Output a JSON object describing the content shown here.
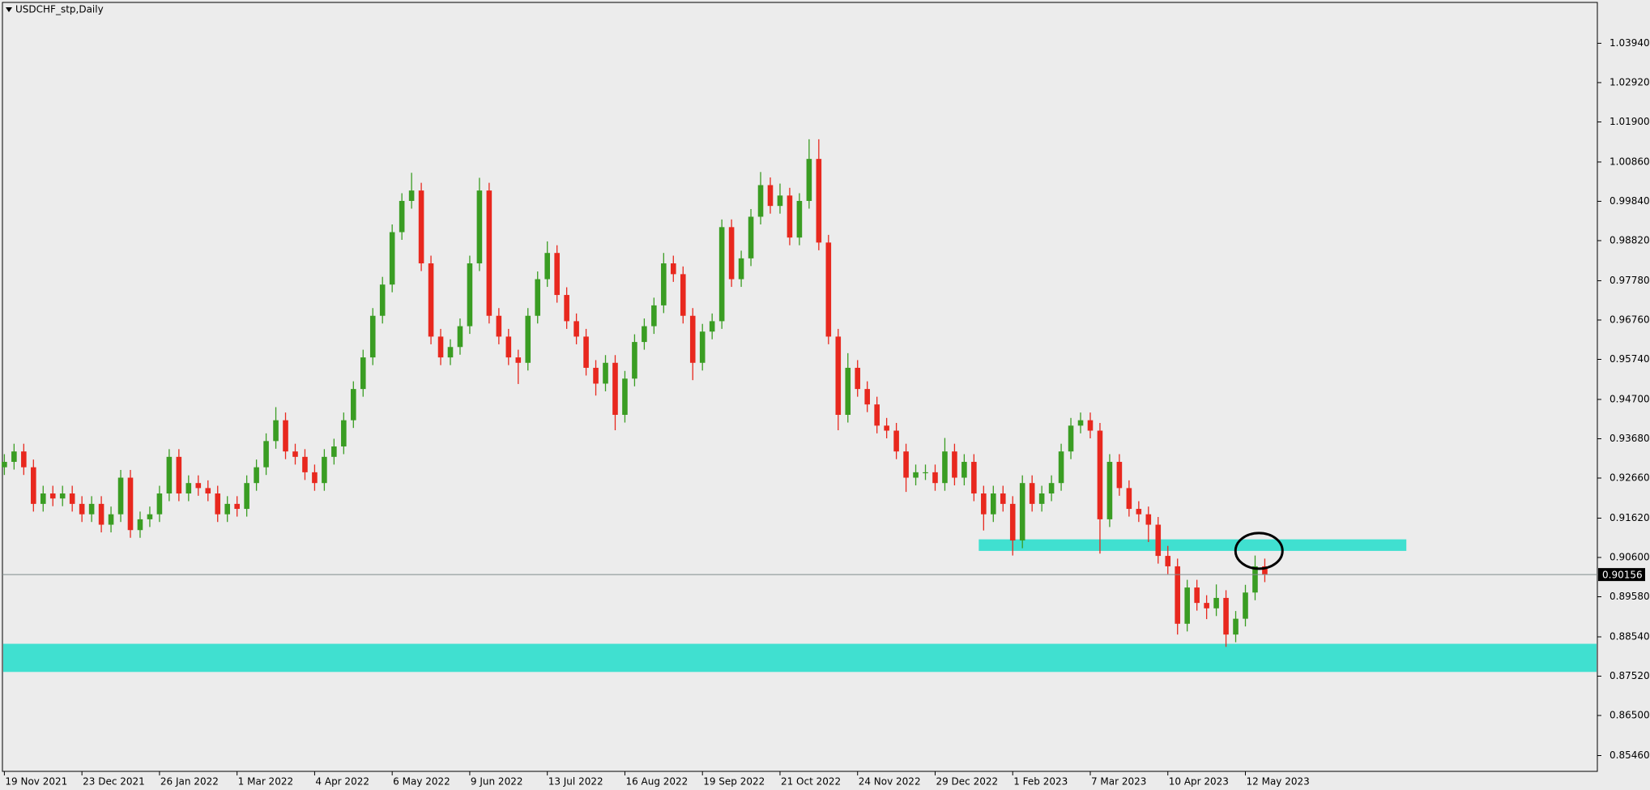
{
  "chart_data": {
    "type": "candlestick",
    "title": "USDCHF_stp,Daily",
    "up_color": "#3a9d23",
    "down_color": "#e8281e",
    "ylim": [
      0.8505,
      1.05
    ],
    "yticks": [
      {
        "value": 1.0394,
        "label": "1.03940"
      },
      {
        "value": 1.0292,
        "label": "1.02920"
      },
      {
        "value": 1.019,
        "label": "1.01900"
      },
      {
        "value": 1.0086,
        "label": "1.00860"
      },
      {
        "value": 0.9984,
        "label": "0.99840"
      },
      {
        "value": 0.9882,
        "label": "0.98820"
      },
      {
        "value": 0.9778,
        "label": "0.97780"
      },
      {
        "value": 0.9676,
        "label": "0.96760"
      },
      {
        "value": 0.9574,
        "label": "0.95740"
      },
      {
        "value": 0.947,
        "label": "0.94700"
      },
      {
        "value": 0.9368,
        "label": "0.93680"
      },
      {
        "value": 0.9266,
        "label": "0.92660"
      },
      {
        "value": 0.9162,
        "label": "0.91620"
      },
      {
        "value": 0.906,
        "label": "0.90600"
      },
      {
        "value": 0.8958,
        "label": "0.89580"
      },
      {
        "value": 0.8854,
        "label": "0.88540"
      },
      {
        "value": 0.8752,
        "label": "0.87520"
      },
      {
        "value": 0.865,
        "label": "0.86500"
      },
      {
        "value": 0.8546,
        "label": "0.85460"
      }
    ],
    "xlim": [
      -0.2,
      164.3
    ],
    "xticks": [
      {
        "value": 0,
        "label": "19 Nov 2021"
      },
      {
        "value": 8,
        "label": "23 Dec 2021"
      },
      {
        "value": 16,
        "label": "26 Jan 2022"
      },
      {
        "value": 24,
        "label": "1 Mar 2022"
      },
      {
        "value": 32,
        "label": "4 Apr 2022"
      },
      {
        "value": 40,
        "label": "6 May 2022"
      },
      {
        "value": 48,
        "label": "9 Jun 2022"
      },
      {
        "value": 56,
        "label": "13 Jul 2022"
      },
      {
        "value": 64,
        "label": "16 Aug 2022"
      },
      {
        "value": 72,
        "label": "19 Sep 2022"
      },
      {
        "value": 80,
        "label": "21 Oct 2022"
      },
      {
        "value": 88,
        "label": "24 Nov 2022"
      },
      {
        "value": 96,
        "label": "29 Dec 2022"
      },
      {
        "value": 104,
        "label": "1 Feb 2023"
      },
      {
        "value": 112,
        "label": "7 Mar 2023"
      },
      {
        "value": 120,
        "label": "10 Apr 2023"
      },
      {
        "value": 128,
        "label": "12 May 2023"
      }
    ],
    "open": [
      0.9294,
      0.9308,
      0.9335,
      0.9294,
      0.9199,
      0.9226,
      0.9213,
      0.9226,
      0.9199,
      0.9172,
      0.9199,
      0.9145,
      0.9172,
      0.9267,
      0.9131,
      0.9159,
      0.9172,
      0.9226,
      0.9321,
      0.9226,
      0.9253,
      0.924,
      0.9226,
      0.9172,
      0.9199,
      0.9186,
      0.9253,
      0.9294,
      0.9362,
      0.9416,
      0.9335,
      0.9321,
      0.9281,
      0.9253,
      0.9321,
      0.9348,
      0.9416,
      0.9497,
      0.9579,
      0.9687,
      0.9768,
      0.9904,
      0.9985,
      1.0012,
      0.9823,
      0.9633,
      0.9579,
      0.9606,
      0.966,
      0.9823,
      1.0012,
      0.9687,
      0.9633,
      0.9579,
      0.9565,
      0.9687,
      0.9782,
      0.985,
      0.9741,
      0.9673,
      0.9633,
      0.9552,
      0.9511,
      0.9565,
      0.943,
      0.9524,
      0.9619,
      0.966,
      0.9714,
      0.9823,
      0.9795,
      0.9687,
      0.9565,
      0.9646,
      0.9673,
      0.9917,
      0.9782,
      0.9836,
      0.9944,
      1.0026,
      0.9972,
      0.9999,
      0.989,
      0.9985,
      1.0094,
      0.9877,
      0.9633,
      0.943,
      0.9552,
      0.9497,
      0.9457,
      0.9402,
      0.9389,
      0.9335,
      0.9267,
      0.9281,
      0.9281,
      0.9253,
      0.9335,
      0.9267,
      0.9308,
      0.9226,
      0.9172,
      0.9226,
      0.9199,
      0.9104,
      0.9253,
      0.9199,
      0.9226,
      0.9253,
      0.9335,
      0.9402,
      0.9416,
      0.9389,
      0.9159,
      0.9308,
      0.924,
      0.9186,
      0.9172,
      0.9145,
      0.9064,
      0.9037,
      0.8888,
      0.8982,
      0.8942,
      0.8928,
      0.8955,
      0.886,
      0.8901,
      0.8969,
      0.9037
    ],
    "high": [
      0.9328,
      0.9355,
      0.9355,
      0.9314,
      0.9246,
      0.9246,
      0.9246,
      0.9246,
      0.9219,
      0.9219,
      0.9219,
      0.9192,
      0.9287,
      0.9287,
      0.9179,
      0.9192,
      0.9246,
      0.9341,
      0.9341,
      0.9273,
      0.9273,
      0.926,
      0.9246,
      0.9219,
      0.9219,
      0.9273,
      0.9314,
      0.9382,
      0.945,
      0.9436,
      0.9355,
      0.9341,
      0.9301,
      0.9341,
      0.9368,
      0.9436,
      0.9517,
      0.9599,
      0.9707,
      0.9788,
      0.9924,
      1.0005,
      1.0058,
      1.0032,
      0.9843,
      0.9653,
      0.9626,
      0.968,
      0.9843,
      1.0045,
      1.0032,
      0.9707,
      0.9653,
      0.9599,
      0.9707,
      0.9802,
      0.988,
      0.987,
      0.9761,
      0.9693,
      0.9653,
      0.9572,
      0.9585,
      0.9585,
      0.9544,
      0.9639,
      0.968,
      0.9734,
      0.985,
      0.9843,
      0.9815,
      0.9707,
      0.9666,
      0.9693,
      0.9937,
      0.9937,
      0.9856,
      0.9964,
      1.006,
      1.0046,
      1.003,
      1.0019,
      1.0005,
      1.0145,
      1.0145,
      0.9897,
      0.9653,
      0.959,
      0.9572,
      0.9517,
      0.9477,
      0.9422,
      0.9409,
      0.9355,
      0.9301,
      0.9301,
      0.9301,
      0.937,
      0.9355,
      0.9328,
      0.9328,
      0.9246,
      0.9246,
      0.9246,
      0.9219,
      0.9273,
      0.9273,
      0.9246,
      0.9273,
      0.9355,
      0.9422,
      0.9436,
      0.9436,
      0.9409,
      0.9328,
      0.9328,
      0.926,
      0.9206,
      0.9192,
      0.9165,
      0.909,
      0.9057,
      0.9002,
      0.9002,
      0.8962,
      0.899,
      0.8975,
      0.8921,
      0.8989,
      0.9065,
      0.9057
    ],
    "low": [
      0.9274,
      0.9288,
      0.9274,
      0.9179,
      0.9179,
      0.9193,
      0.9193,
      0.9179,
      0.9152,
      0.9152,
      0.9125,
      0.9125,
      0.9152,
      0.9111,
      0.9111,
      0.9139,
      0.9152,
      0.9206,
      0.9206,
      0.9206,
      0.922,
      0.9206,
      0.9152,
      0.9152,
      0.9166,
      0.9166,
      0.9233,
      0.9274,
      0.9342,
      0.9315,
      0.9301,
      0.9261,
      0.9233,
      0.9233,
      0.9301,
      0.9328,
      0.9396,
      0.9477,
      0.9559,
      0.9667,
      0.9748,
      0.9884,
      0.9965,
      0.9803,
      0.9613,
      0.9559,
      0.9559,
      0.9586,
      0.964,
      0.9803,
      0.9667,
      0.9613,
      0.9559,
      0.951,
      0.9545,
      0.9667,
      0.9762,
      0.9721,
      0.9653,
      0.9613,
      0.9532,
      0.948,
      0.9491,
      0.939,
      0.941,
      0.9504,
      0.9599,
      0.964,
      0.9694,
      0.9775,
      0.9667,
      0.952,
      0.9545,
      0.9626,
      0.9653,
      0.9762,
      0.9762,
      0.9816,
      0.9924,
      0.9952,
      0.9952,
      0.987,
      0.987,
      0.9965,
      0.9857,
      0.9613,
      0.939,
      0.941,
      0.9477,
      0.9437,
      0.9382,
      0.9369,
      0.9315,
      0.923,
      0.9247,
      0.9261,
      0.9233,
      0.9233,
      0.9247,
      0.9247,
      0.9206,
      0.913,
      0.9152,
      0.9179,
      0.9065,
      0.9084,
      0.9179,
      0.9179,
      0.9206,
      0.9233,
      0.9315,
      0.9382,
      0.9369,
      0.907,
      0.9139,
      0.922,
      0.9166,
      0.9152,
      0.91,
      0.9044,
      0.9017,
      0.886,
      0.8868,
      0.8922,
      0.89,
      0.8908,
      0.8828,
      0.884,
      0.8881,
      0.8949,
      0.8996
    ],
    "close": [
      0.9308,
      0.9335,
      0.9294,
      0.9199,
      0.9226,
      0.9213,
      0.9226,
      0.9199,
      0.9172,
      0.9199,
      0.9145,
      0.9172,
      0.9267,
      0.9131,
      0.9159,
      0.9172,
      0.9226,
      0.9321,
      0.9226,
      0.9253,
      0.924,
      0.9226,
      0.9172,
      0.9199,
      0.9186,
      0.9253,
      0.9294,
      0.9362,
      0.9416,
      0.9335,
      0.9321,
      0.9281,
      0.9253,
      0.9321,
      0.9348,
      0.9416,
      0.9497,
      0.9579,
      0.9687,
      0.9768,
      0.9904,
      0.9985,
      1.0012,
      0.9823,
      0.9633,
      0.9579,
      0.9606,
      0.966,
      0.9823,
      1.0012,
      0.9687,
      0.9633,
      0.9579,
      0.9565,
      0.9687,
      0.9782,
      0.985,
      0.9741,
      0.9673,
      0.9633,
      0.9552,
      0.9511,
      0.9565,
      0.943,
      0.9524,
      0.9619,
      0.966,
      0.9714,
      0.9823,
      0.9795,
      0.9687,
      0.9565,
      0.9646,
      0.9673,
      0.9917,
      0.9782,
      0.9836,
      0.9944,
      1.0026,
      0.9972,
      0.9999,
      0.989,
      0.9985,
      1.0094,
      0.9877,
      0.9633,
      0.943,
      0.9552,
      0.9497,
      0.9457,
      0.9402,
      0.9389,
      0.9335,
      0.9267,
      0.9281,
      0.9281,
      0.9253,
      0.9335,
      0.9267,
      0.9308,
      0.9226,
      0.9172,
      0.9226,
      0.9199,
      0.9104,
      0.9253,
      0.9199,
      0.9226,
      0.9253,
      0.9335,
      0.9402,
      0.9416,
      0.9389,
      0.9159,
      0.9308,
      0.924,
      0.9186,
      0.9172,
      0.9145,
      0.9064,
      0.9037,
      0.8888,
      0.8982,
      0.8942,
      0.8928,
      0.8955,
      0.886,
      0.8901,
      0.8969,
      0.9037,
      0.9016
    ],
    "last_price": 0.90156,
    "zone_color": "#40e0d0",
    "zones": [
      {
        "xlim": [
          100.5,
          144.6
        ],
        "ylim": [
          0.9077,
          0.9107
        ]
      },
      {
        "ylim": [
          0.8763,
          0.8836
        ]
      }
    ],
    "highlight": {
      "x": 129.4,
      "y": 0.9077
    }
  }
}
